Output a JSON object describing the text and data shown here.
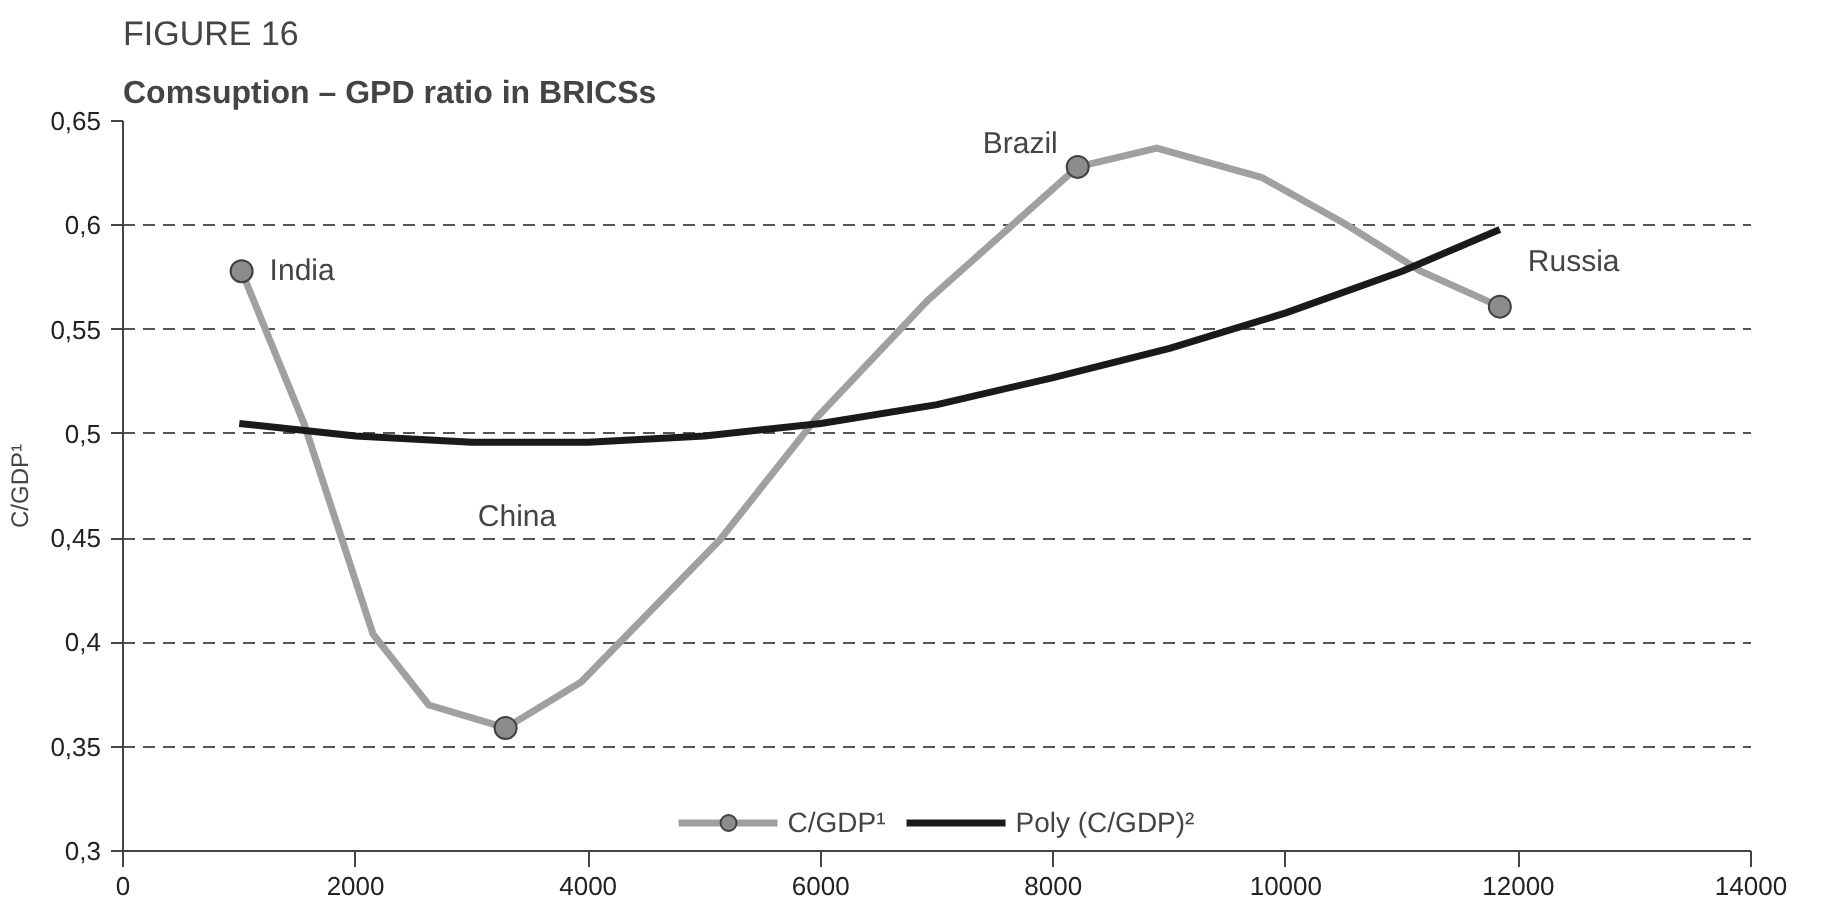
{
  "chart_data": {
    "type": "line",
    "title": "FIGURE 16",
    "subtitle": "Comsuption – GPD ratio in BRICSs",
    "ylabel": "C/GDP¹",
    "xlim": [
      0,
      14000
    ],
    "xticks": [
      0,
      2000,
      4000,
      6000,
      8000,
      10000,
      12000,
      14000
    ],
    "ylim": [
      0.3,
      0.65
    ],
    "yticks": [
      {
        "value": 0.3,
        "label": "0,3"
      },
      {
        "value": 0.35,
        "label": "0,35"
      },
      {
        "value": 0.4,
        "label": "0,4"
      },
      {
        "value": 0.45,
        "label": "0,45"
      },
      {
        "value": 0.5,
        "label": "0,5"
      },
      {
        "value": 0.55,
        "label": "0,55"
      },
      {
        "value": 0.6,
        "label": "0,6"
      },
      {
        "value": 0.65,
        "label": "0,65"
      }
    ],
    "grid": "y",
    "legend": "bottom",
    "series": [
      {
        "name": "C/GDP¹",
        "color": "#a0a0a0",
        "marker": "none",
        "x": [
          1020,
          1556,
          2150,
          2630,
          3290,
          3940,
          5130,
          5970,
          6920,
          8210,
          8890,
          9790,
          10500,
          11160,
          11840
        ],
        "values": [
          0.578,
          0.505,
          0.404,
          0.37,
          0.359,
          0.381,
          0.449,
          0.508,
          0.564,
          0.628,
          0.637,
          0.623,
          0.601,
          0.578,
          0.561
        ]
      },
      {
        "type": "scatter",
        "color": "#8c8c8c",
        "marker": "circle",
        "x": [
          1020,
          3290,
          8210,
          11840
        ],
        "values": [
          0.578,
          0.359,
          0.628,
          0.561
        ]
      },
      {
        "name": "Poly (C/GDP)²",
        "color": "#1a1a1a",
        "marker": "none",
        "x": [
          1000,
          2000,
          3000,
          4000,
          5000,
          6000,
          7000,
          8000,
          9000,
          10000,
          11000,
          11840
        ],
        "values": [
          0.505,
          0.499,
          0.496,
          0.496,
          0.499,
          0.505,
          0.514,
          0.527,
          0.541,
          0.558,
          0.578,
          0.598
        ]
      }
    ],
    "annotations": [
      {
        "text": "India",
        "x": 1020,
        "y": 0.578
      },
      "China",
      {
        "text": "Brazil",
        "x": 8210,
        "y": 0.628
      },
      {
        "text": "Russia",
        "x": 11840,
        "y": 0.561
      }
    ]
  }
}
